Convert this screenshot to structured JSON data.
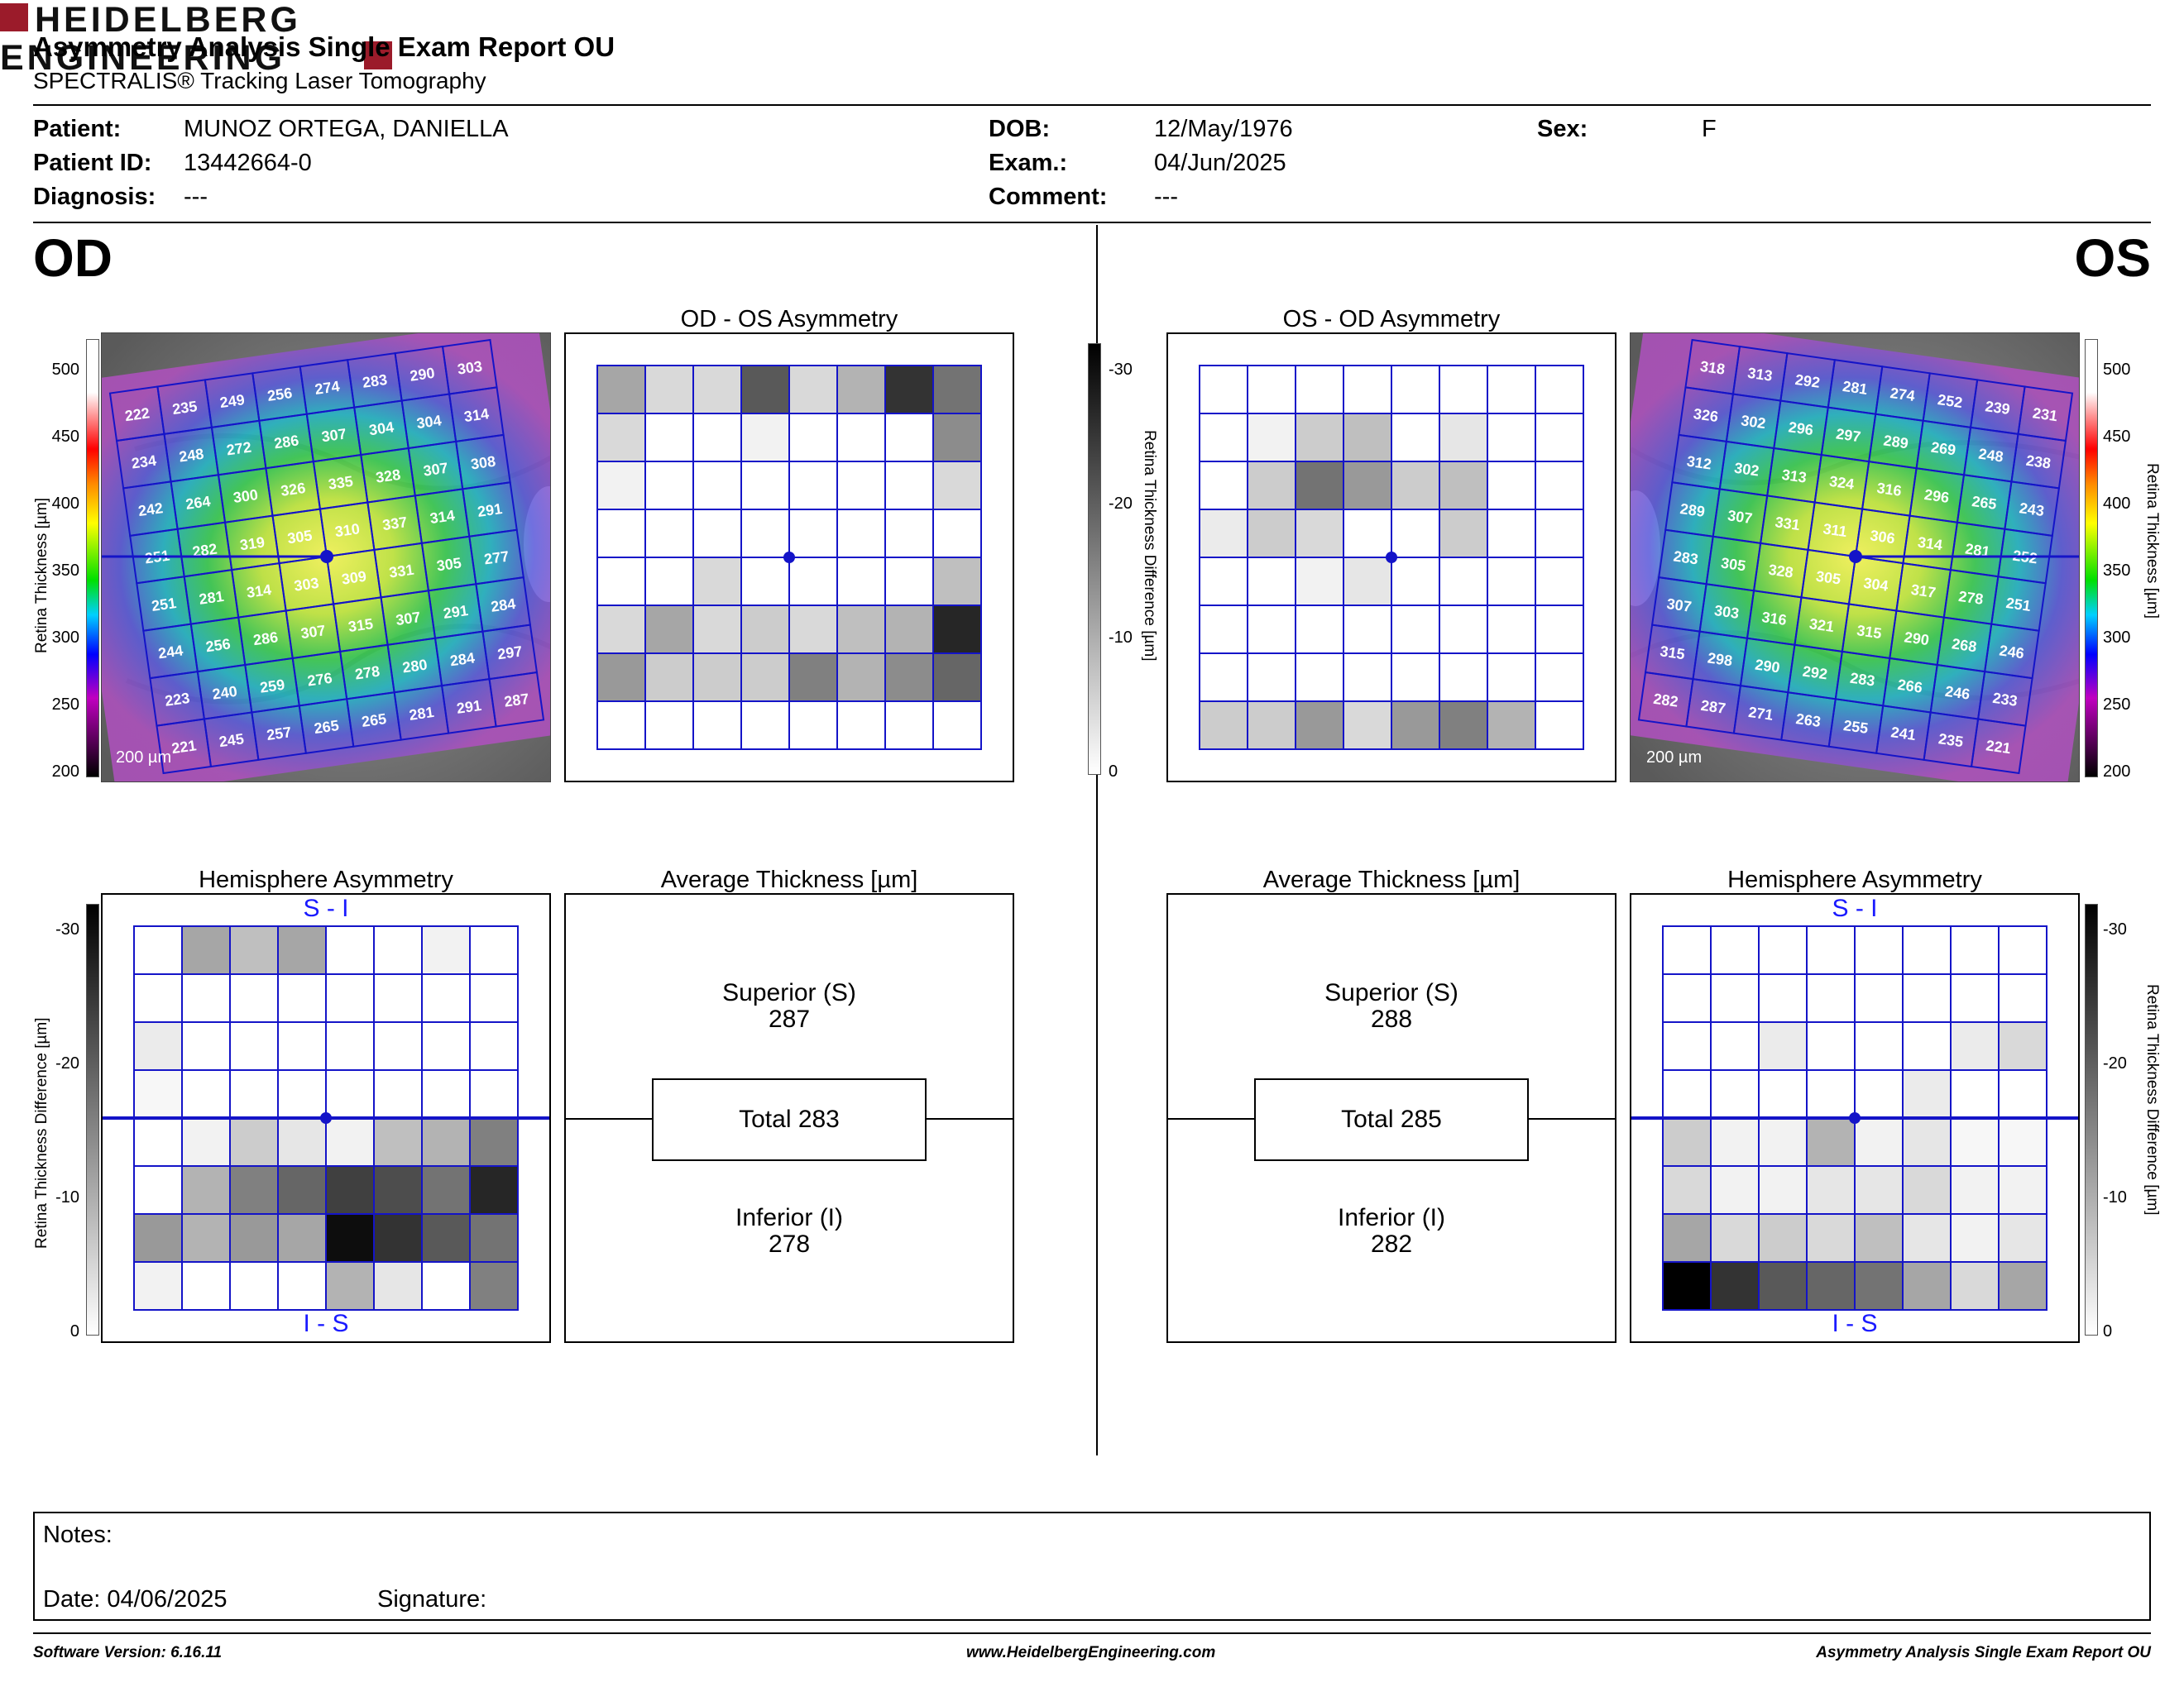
{
  "header": {
    "title": "Asymmetry Analysis Single Exam Report OU",
    "subtitle": "SPECTRALIS® Tracking Laser Tomography",
    "logo_line1": "HEIDELBERG",
    "logo_line2": "ENGINEERING"
  },
  "patient": {
    "patient_label": "Patient:",
    "patient_value": "MUNOZ ORTEGA, DANIELLA",
    "id_label": "Patient ID:",
    "id_value": "13442664-0",
    "diagnosis_label": "Diagnosis:",
    "diagnosis_value": "---",
    "dob_label": "DOB:",
    "dob_value": "12/May/1976",
    "exam_label": "Exam.:",
    "exam_value": "04/Jun/2025",
    "comment_label": "Comment:",
    "comment_value": "---",
    "sex_label": "Sex:",
    "sex_value": "F"
  },
  "eyes": {
    "od": "OD",
    "os": "OS"
  },
  "od": {
    "asym_title": "OD - OS Asymmetry",
    "hemi_title": "Hemisphere Asymmetry",
    "avg_title": "Average Thickness [µm]",
    "superior_label": "Superior (S)",
    "superior_value": "287",
    "total_label": "Total 283",
    "inferior_label": "Inferior (I)",
    "inferior_value": "278",
    "hemi_top": "S - I",
    "hemi_bottom": "I - S",
    "scale_bar": "200 µm",
    "thickness_grid": [
      [
        222,
        235,
        249,
        256,
        274,
        283,
        290,
        303
      ],
      [
        234,
        248,
        272,
        286,
        307,
        304,
        304,
        314
      ],
      [
        242,
        264,
        300,
        326,
        335,
        328,
        307,
        308
      ],
      [
        251,
        282,
        319,
        305,
        310,
        337,
        314,
        291
      ],
      [
        251,
        281,
        314,
        303,
        309,
        331,
        305,
        277
      ],
      [
        244,
        256,
        286,
        307,
        315,
        307,
        291,
        284
      ],
      [
        223,
        240,
        259,
        276,
        278,
        280,
        284,
        297
      ],
      [
        221,
        245,
        257,
        265,
        265,
        281,
        291,
        287
      ]
    ],
    "asym_gray": [
      [
        0.35,
        0.15,
        0.15,
        0.65,
        0.15,
        0.3,
        0.8,
        0.55
      ],
      [
        0.15,
        0,
        0,
        0.05,
        0,
        0,
        0,
        0.45
      ],
      [
        0.05,
        0,
        0,
        0,
        0,
        0,
        0,
        0.15
      ],
      [
        0,
        0,
        0,
        0,
        0,
        0,
        0,
        0
      ],
      [
        0,
        0,
        0.15,
        0,
        0,
        0,
        0,
        0.25
      ],
      [
        0.15,
        0.35,
        0.15,
        0.2,
        0.15,
        0.25,
        0.3,
        0.85
      ],
      [
        0.4,
        0.2,
        0.2,
        0.2,
        0.5,
        0.3,
        0.45,
        0.6
      ],
      [
        0,
        0,
        0,
        0,
        0,
        0,
        0,
        0
      ]
    ],
    "hemi_gray": [
      [
        0,
        0.35,
        0.25,
        0.35,
        0,
        0,
        0.05,
        0
      ],
      [
        0,
        0,
        0,
        0,
        0,
        0,
        0,
        0
      ],
      [
        0.08,
        0,
        0,
        0,
        0,
        0,
        0,
        0
      ],
      [
        0.03,
        0,
        0,
        0,
        0,
        0,
        0,
        0
      ],
      [
        0,
        0.05,
        0.2,
        0.1,
        0.05,
        0.25,
        0.3,
        0.5
      ],
      [
        0,
        0.3,
        0.5,
        0.6,
        0.75,
        0.7,
        0.55,
        0.85
      ],
      [
        0.4,
        0.3,
        0.4,
        0.35,
        0.95,
        0.8,
        0.65,
        0.55
      ],
      [
        0.05,
        0,
        0,
        0,
        0.3,
        0.1,
        0,
        0.5
      ]
    ]
  },
  "os": {
    "asym_title": "OS - OD Asymmetry",
    "hemi_title": "Hemisphere Asymmetry",
    "avg_title": "Average Thickness [µm]",
    "superior_label": "Superior (S)",
    "superior_value": "288",
    "total_label": "Total 285",
    "inferior_label": "Inferior (I)",
    "inferior_value": "282",
    "hemi_top": "S - I",
    "hemi_bottom": "I - S",
    "scale_bar": "200 µm",
    "thickness_grid": [
      [
        318,
        313,
        292,
        281,
        274,
        252,
        239,
        231
      ],
      [
        326,
        302,
        296,
        297,
        289,
        269,
        248,
        238
      ],
      [
        312,
        302,
        313,
        324,
        316,
        296,
        265,
        243
      ],
      [
        289,
        307,
        331,
        311,
        306,
        314,
        281,
        252
      ],
      [
        283,
        305,
        328,
        305,
        304,
        317,
        278,
        251
      ],
      [
        307,
        303,
        316,
        321,
        315,
        290,
        268,
        246
      ],
      [
        315,
        298,
        290,
        292,
        283,
        266,
        246,
        233
      ],
      [
        282,
        287,
        271,
        263,
        255,
        241,
        235,
        221
      ]
    ],
    "asym_gray": [
      [
        0,
        0,
        0,
        0,
        0,
        0,
        0,
        0
      ],
      [
        0,
        0.05,
        0.2,
        0.25,
        0,
        0.1,
        0,
        0
      ],
      [
        0,
        0.2,
        0.55,
        0.4,
        0.2,
        0.25,
        0,
        0
      ],
      [
        0.08,
        0.2,
        0.15,
        0,
        0,
        0.2,
        0,
        0
      ],
      [
        0,
        0,
        0.05,
        0.1,
        0,
        0,
        0,
        0
      ],
      [
        0,
        0,
        0,
        0,
        0,
        0,
        0,
        0
      ],
      [
        0,
        0,
        0,
        0,
        0,
        0,
        0,
        0
      ],
      [
        0.2,
        0.2,
        0.4,
        0.15,
        0.4,
        0.5,
        0.3,
        0
      ]
    ],
    "hemi_gray": [
      [
        0,
        0,
        0,
        0,
        0,
        0,
        0,
        0
      ],
      [
        0,
        0,
        0,
        0,
        0,
        0,
        0,
        0
      ],
      [
        0,
        0,
        0.08,
        0,
        0,
        0,
        0.08,
        0.15
      ],
      [
        0,
        0,
        0,
        0,
        0,
        0.08,
        0,
        0
      ],
      [
        0.2,
        0.05,
        0.05,
        0.3,
        0.05,
        0.1,
        0.03,
        0.03
      ],
      [
        0.15,
        0.05,
        0.05,
        0.1,
        0.1,
        0.15,
        0.05,
        0.05
      ],
      [
        0.35,
        0.15,
        0.2,
        0.15,
        0.25,
        0.1,
        0.05,
        0.1
      ],
      [
        1.0,
        0.8,
        0.65,
        0.6,
        0.55,
        0.35,
        0.15,
        0.35
      ]
    ]
  },
  "color_scale": {
    "ticks": [
      "500",
      "450",
      "400",
      "350",
      "300",
      "250",
      "200"
    ],
    "label": "Retina Thickness [µm]"
  },
  "gray_scale": {
    "ticks": [
      "-30",
      "-20",
      "-10",
      "0"
    ],
    "label": "Retina Thickness Difference [µm]"
  },
  "notes": {
    "notes_label": "Notes:",
    "date_label": "Date: 04/06/2025",
    "signature_label": "Signature:"
  },
  "footer": {
    "software": "Software Version: 6.16.11",
    "website": "www.HeidelbergEngineering.com",
    "report": "Asymmetry Analysis Single Exam Report OU"
  },
  "colors": {
    "grid_blue": "#1414c8",
    "logo_red": "#9b1b2a"
  }
}
